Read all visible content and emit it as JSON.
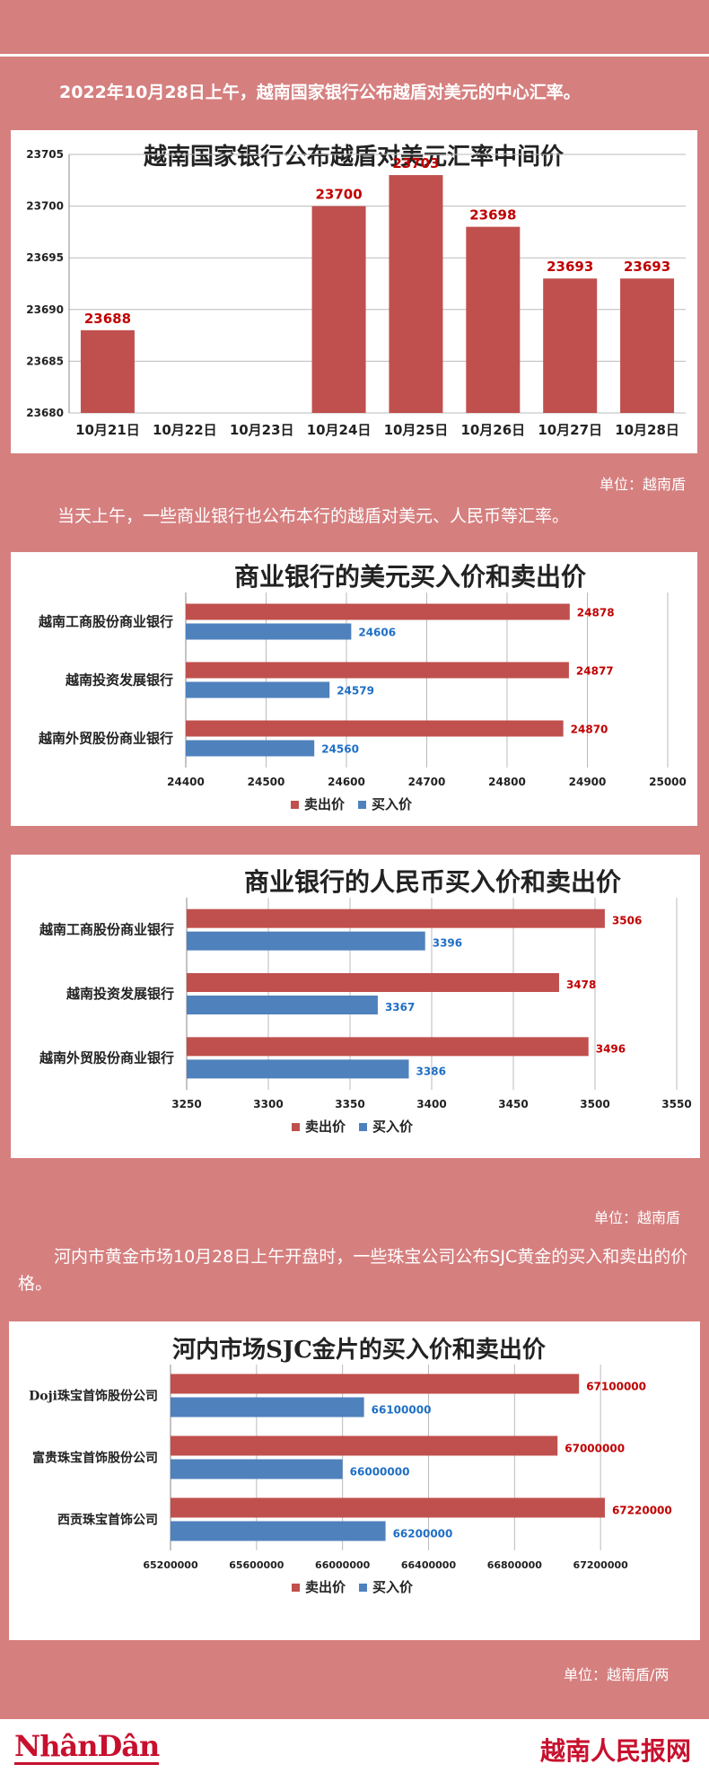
{
  "intro_text": "2022年10月28日上午，越南国家银行公布越盾对美元的中心汇率。",
  "unit1": "单位：越南盾",
  "intro_text2": "当天上午，一些商业银行也公布本行的越盾对美元、人民币等汇率。",
  "unit2": "单位：越南盾",
  "intro_text3": "河内市黄金市场10月28日上午开盘时，一些珠宝公司公布SJC黄金的买入和卖出的价格。",
  "unit3": "单位：越南盾/两",
  "footer": {
    "logo": "NhânDân",
    "site": "越南人民报网"
  },
  "colors": {
    "red": "#c0504d",
    "blue": "#4f81bd",
    "value_red": "#c00000",
    "value_blue": "#1f6fc5"
  },
  "chart_data": [
    {
      "type": "bar",
      "title": "越南国家银行公布越盾对美元汇率中间价",
      "categories": [
        "10月21日",
        "10月22日",
        "10月23日",
        "10月24日",
        "10月25日",
        "10月26日",
        "10月27日",
        "10月28日"
      ],
      "values": [
        23688,
        null,
        null,
        23700,
        23703,
        23698,
        23693,
        23693
      ],
      "ylim": [
        23680,
        23705
      ],
      "yticks": [
        23680,
        23685,
        23690,
        23695,
        23700,
        23705
      ],
      "grid": true
    },
    {
      "type": "bar",
      "orientation": "horizontal",
      "title": "商业银行的美元买入价和卖出价",
      "categories": [
        "越南工商股份商业银行",
        "越南投资发展银行",
        "越南外贸股份商业银行"
      ],
      "series": [
        {
          "name": "卖出价",
          "values": [
            24878,
            24877,
            24870
          ]
        },
        {
          "name": "买入价",
          "values": [
            24606,
            24579,
            24560
          ]
        }
      ],
      "xlim": [
        24400,
        25000
      ],
      "xticks": [
        24400,
        24500,
        24600,
        24700,
        24800,
        24900,
        25000
      ],
      "legend": "bottom",
      "grid": true
    },
    {
      "type": "bar",
      "orientation": "horizontal",
      "title": "商业银行的人民币买入价和卖出价",
      "categories": [
        "越南工商股份商业银行",
        "越南投资发展银行",
        "越南外贸股份商业银行"
      ],
      "series": [
        {
          "name": "卖出价",
          "values": [
            3506,
            3478,
            3496
          ]
        },
        {
          "name": "买入价",
          "values": [
            3396,
            3367,
            3386
          ]
        }
      ],
      "xlim": [
        3250,
        3550
      ],
      "xticks": [
        3250,
        3300,
        3350,
        3400,
        3450,
        3500,
        3550
      ],
      "legend": "bottom",
      "grid": true
    },
    {
      "type": "bar",
      "orientation": "horizontal",
      "title": "河内市场SJC金片的买入价和卖出价",
      "categories": [
        "Doji珠宝首饰股份公司",
        "富贵珠宝首饰股份公司",
        "西贡珠宝首饰公司"
      ],
      "series": [
        {
          "name": "卖出价",
          "values": [
            67100000,
            67000000,
            67220000
          ]
        },
        {
          "name": "买入价",
          "values": [
            66100000,
            66000000,
            66200000
          ]
        }
      ],
      "xlim": [
        65200000,
        67600000
      ],
      "xticks": [
        65200000,
        65600000,
        66000000,
        66400000,
        66800000,
        67200000
      ],
      "legend": "bottom",
      "grid": true
    }
  ]
}
